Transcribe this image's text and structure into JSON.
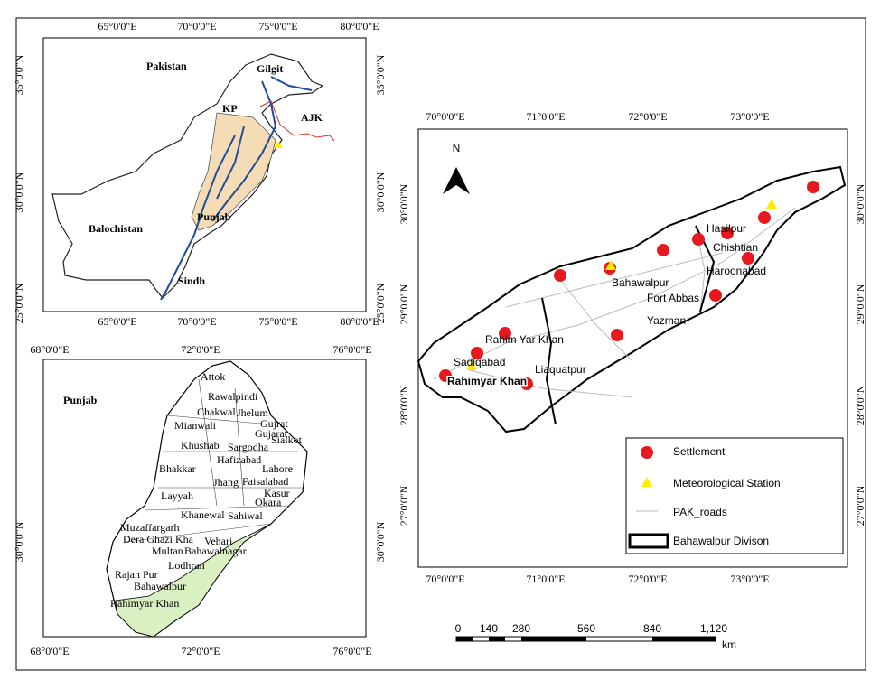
{
  "pakistan": {
    "title": "Pakistan",
    "top_ticks": [
      "65°0'0\"E",
      "70°0'0\"E",
      "75°0'0\"E",
      "80°0'0\"E"
    ],
    "bottom_ticks": [
      "65°0'0\"E",
      "70°0'0\"E",
      "75°0'0\"E",
      "80°0'0\"E"
    ],
    "left_ticks": [
      "35°0'0\"N",
      "30°0'0\"N",
      "25°0'0\"N"
    ],
    "right_ticks": [
      "35°0'0\"N",
      "30°0'0\"N",
      "25°0'0\"N"
    ],
    "labels": [
      "Gilgit",
      "KP",
      "AJK",
      "Balochistan",
      "Punjab",
      "Sindh"
    ]
  },
  "punjab": {
    "title": "Punjab",
    "top_ticks": [
      "68°0'0\"E",
      "72°0'0\"E",
      "76°0'0\"E"
    ],
    "bottom_ticks": [
      "68°0'0\"E",
      "72°0'0\"E",
      "76°0'0\"E"
    ],
    "left_ticks": [
      "30°0'0\"N"
    ],
    "right_ticks": [
      "30°0'0\"N"
    ],
    "districts": [
      "Attok",
      "Rawalpindi",
      "Chakwal",
      "Jhelum",
      "Mianwali",
      "Gujrat",
      "Gujarat",
      "Sialkot",
      "Khushab",
      "Sargodha",
      "Hafizabad",
      "Bhakkar",
      "Lahore",
      "Jhang",
      "Faisalabad",
      "Layyah",
      "Okara",
      "Kasur",
      "Khanewal",
      "Sahiwal",
      "Muzaffargarh",
      "Dera Ghazi Kha",
      "Vehari",
      "Multan",
      "Bahawalnagar",
      "Lodhran",
      "Rajan Pur",
      "Bahawalpur",
      "Rahimyar Khan"
    ]
  },
  "division": {
    "north": "N",
    "top_ticks": [
      "70°0'0\"E",
      "71°0'0\"E",
      "72°0'0\"E",
      "73°0'0\"E"
    ],
    "bottom_ticks": [
      "70°0'0\"E",
      "71°0'0\"E",
      "72°0'0\"E",
      "73°0'0\"E"
    ],
    "left_ticks": [
      "30°0'0\"N",
      "29°0'0\"N",
      "28°0'0\"N",
      "27°0'0\"N"
    ],
    "right_ticks": [
      "30°0'0\"N",
      "29°0'0\"N",
      "28°0'0\"N",
      "27°0'0\"N"
    ],
    "places": [
      "Hasilpur",
      "Chishtian",
      "Haroonabad",
      "Bahawalpur",
      "Fort Abbas",
      "Yazman",
      "Rahim Yar Khan",
      "Sadiqabad",
      "Liaquatpur",
      "Rahimyar Khan"
    ],
    "legend": [
      "Settlement",
      "Meteorological Station",
      "PAK_roads",
      "Bahawalpur Divison"
    ],
    "scale": {
      "labels": [
        "0",
        "140",
        "280",
        "560",
        "840",
        "1,120"
      ],
      "unit": "km"
    }
  }
}
